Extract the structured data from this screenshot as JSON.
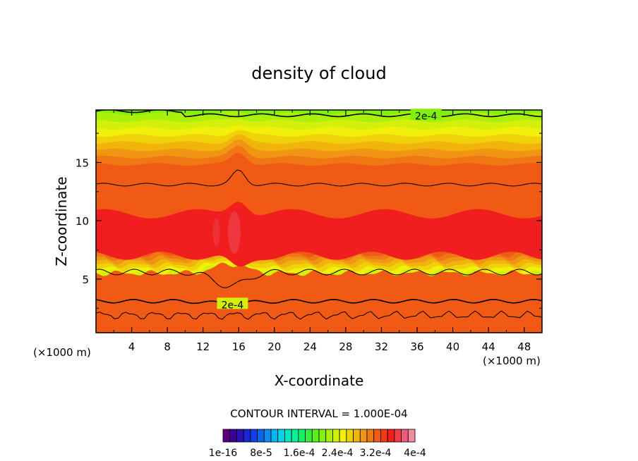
{
  "chart_data": {
    "type": "heatmap",
    "title": "density of cloud",
    "xlabel": "X-coordinate",
    "ylabel": "Z-coordinate",
    "x_unit_left": "(×1000 m)",
    "x_unit_right": "(×1000 m)",
    "xlim": [
      0,
      50
    ],
    "ylim": [
      0.4,
      19.5
    ],
    "x_ticks": [
      4,
      8,
      12,
      16,
      20,
      24,
      28,
      32,
      36,
      40,
      44,
      48
    ],
    "y_ticks": [
      5,
      10,
      15
    ],
    "contour_interval_text": "CONTOUR INTERVAL = 1.000E-04",
    "contour_labels": [
      {
        "text": "2e-4",
        "x": 37.0,
        "z": 19.0
      },
      {
        "text": "2e-4",
        "x": 15.3,
        "z": 2.8
      }
    ],
    "colorbar": {
      "colors": [
        "#5a007a",
        "#3c0096",
        "#2a10b4",
        "#1a28d2",
        "#1040e6",
        "#0a64ec",
        "#0a8cf0",
        "#0ab4f0",
        "#0ad2e6",
        "#0ae6be",
        "#0af096",
        "#14f064",
        "#32f03c",
        "#5af01e",
        "#82f00a",
        "#aaf00a",
        "#d2f00a",
        "#f0f00a",
        "#f0d20a",
        "#f0b40a",
        "#f09614",
        "#f07814",
        "#f05a14",
        "#f03c14",
        "#f01e1e",
        "#f03c46",
        "#f05a78",
        "#f08c9c"
      ],
      "tick_labels": [
        "1e-16",
        "8e-5",
        "1.6e-4",
        "2.4e-4",
        "3.2e-4",
        "4e-4"
      ]
    }
  }
}
